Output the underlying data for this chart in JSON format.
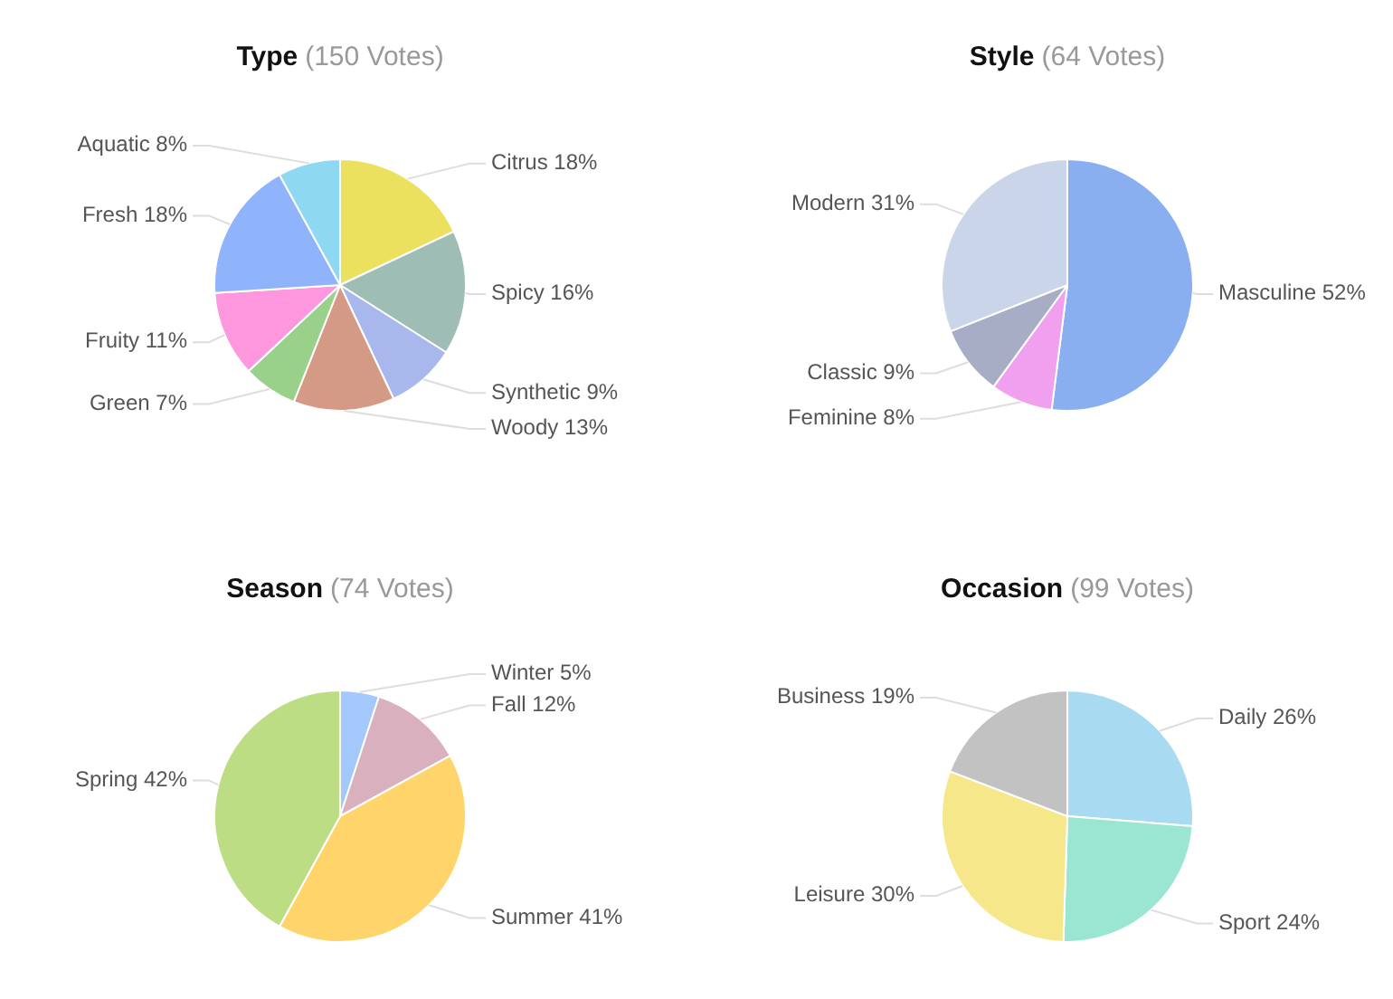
{
  "chart_data": [
    {
      "type": "pie",
      "title": "Type",
      "subtitle": "(150 Votes)",
      "categories": [
        "Citrus",
        "Spicy",
        "Synthetic",
        "Woody",
        "Green",
        "Fruity",
        "Fresh",
        "Aquatic"
      ],
      "values": [
        18,
        16,
        9,
        13,
        7,
        11,
        18,
        8
      ],
      "value_labels": [
        "18%",
        "16%",
        "9%",
        "13%",
        "7%",
        "11%",
        "18%",
        "8%"
      ],
      "colors": [
        "#ebe15f",
        "#9dbdb5",
        "#a9b8ec",
        "#d59a86",
        "#99d08a",
        "#ff97de",
        "#90b4fb",
        "#8fd8f1"
      ]
    },
    {
      "type": "pie",
      "title": "Style",
      "subtitle": "(64 Votes)",
      "categories": [
        "Masculine",
        "Feminine",
        "Classic",
        "Modern"
      ],
      "values": [
        52,
        8,
        9,
        31
      ],
      "value_labels": [
        "52%",
        "8%",
        "9%",
        "31%"
      ],
      "colors": [
        "#8aaff0",
        "#f0a0ee",
        "#a8adc6",
        "#cbd5ea"
      ]
    },
    {
      "type": "pie",
      "title": "Season",
      "subtitle": "(74 Votes)",
      "categories": [
        "Winter",
        "Fall",
        "Summer",
        "Spring"
      ],
      "values": [
        5,
        12,
        41,
        42
      ],
      "value_labels": [
        "5%",
        "12%",
        "41%",
        "42%"
      ],
      "colors": [
        "#a3c8fc",
        "#d9b0bd",
        "#ffd56b",
        "#bcdd83"
      ]
    },
    {
      "type": "pie",
      "title": "Occasion",
      "subtitle": "(99 Votes)",
      "categories": [
        "Daily",
        "Sport",
        "Leisure",
        "Business"
      ],
      "values": [
        26,
        24,
        30,
        19
      ],
      "value_labels": [
        "26%",
        "24%",
        "30%",
        "19%"
      ],
      "colors": [
        "#a8dbf2",
        "#9be5d3",
        "#f5e78a",
        "#c2c2c2"
      ]
    }
  ]
}
